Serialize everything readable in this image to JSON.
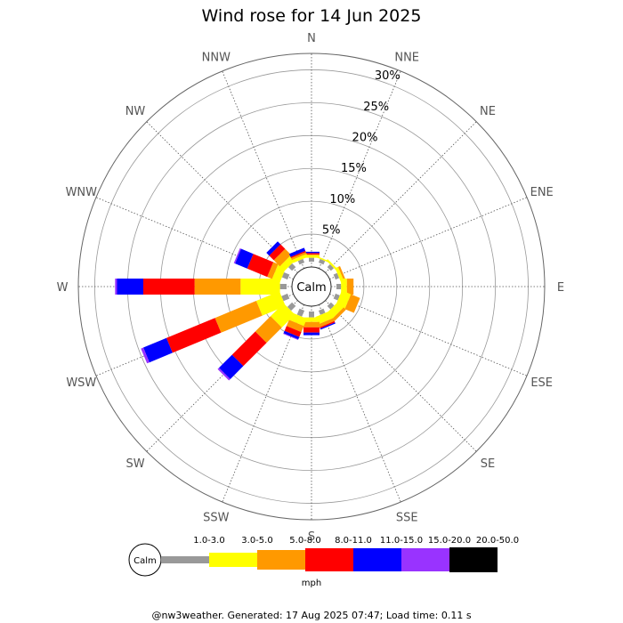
{
  "chart_data": {
    "type": "windrose",
    "title": "Wind rose for 14 Jun 2025",
    "directions": [
      "N",
      "NNE",
      "NE",
      "ENE",
      "E",
      "ESE",
      "SE",
      "SSE",
      "S",
      "SSW",
      "SW",
      "WSW",
      "W",
      "WNW",
      "NW",
      "NNW"
    ],
    "radial_ticks": [
      "5%",
      "10%",
      "15%",
      "20%",
      "25%",
      "30%"
    ],
    "radial_tick_values": [
      5,
      10,
      15,
      20,
      25,
      30
    ],
    "rmax": 32.5,
    "calm_label": "Calm",
    "bins": [
      {
        "label": "1.0-3.0",
        "color": "#999999"
      },
      {
        "label": "3.0-5.0",
        "color": "#ffff00"
      },
      {
        "label": "5.0-8.0",
        "color": "#ff9900"
      },
      {
        "label": "8.0-11.0",
        "color": "#ff0000"
      },
      {
        "label": "11.0-15.0",
        "color": "#0000ff"
      },
      {
        "label": "15.0-20.0",
        "color": "#9933ff"
      },
      {
        "label": "20.0-50.0",
        "color": "#000000"
      }
    ],
    "values": [
      [
        0.6,
        0.4,
        0.1,
        0.2,
        0.2,
        0.0,
        0.0
      ],
      [
        0.6,
        0.2,
        0.0,
        0.0,
        0.0,
        0.0,
        0.0
      ],
      [
        0.6,
        0.3,
        0.0,
        0.0,
        0.0,
        0.0,
        0.0
      ],
      [
        0.6,
        0.5,
        0.3,
        0.0,
        0.0,
        0.0,
        0.0
      ],
      [
        0.7,
        0.9,
        1.0,
        0.0,
        0.0,
        0.0,
        0.0
      ],
      [
        0.7,
        1.5,
        1.5,
        0.0,
        0.0,
        0.0,
        0.0
      ],
      [
        0.7,
        1.2,
        0.5,
        0.0,
        0.0,
        0.0,
        0.0
      ],
      [
        0.7,
        1.2,
        0.5,
        0.2,
        0.2,
        0.0,
        0.0
      ],
      [
        0.9,
        0.7,
        0.8,
        0.8,
        0.4,
        0.0,
        0.0
      ],
      [
        1.0,
        1.2,
        1.0,
        0.8,
        0.4,
        0.1,
        0.0
      ],
      [
        1.0,
        2.8,
        3.3,
        5.0,
        2.8,
        0.3,
        0.0
      ],
      [
        1.0,
        3.8,
        6.8,
        8.0,
        3.8,
        0.4,
        0.0
      ],
      [
        1.0,
        6.0,
        7.0,
        7.8,
        4.0,
        0.3,
        0.0
      ],
      [
        0.9,
        1.3,
        0.8,
        3.3,
        2.0,
        0.2,
        0.0
      ],
      [
        0.8,
        1.0,
        1.3,
        1.0,
        0.6,
        0.0,
        0.0
      ],
      [
        0.6,
        0.5,
        0.3,
        0.2,
        0.5,
        0.0,
        0.0
      ]
    ],
    "legend_unit": "mph"
  },
  "footer": "@nw3weather. Generated: 17 Aug 2025 07:47; Load time: 0.11 s"
}
